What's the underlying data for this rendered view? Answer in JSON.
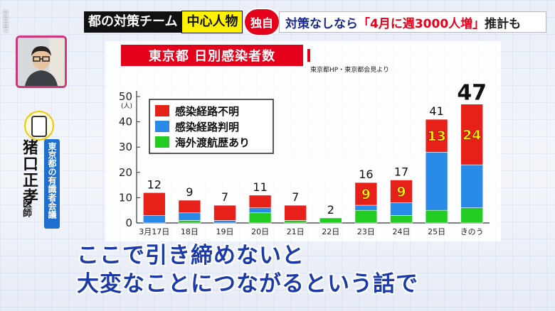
{
  "logo": "GOOD!",
  "caption": {
    "team": "都の対策チーム",
    "role": "中心人物",
    "exclusive": "独自",
    "headline_pre": "対策なしなら",
    "headline_hl": "「4月に週3000人増」",
    "headline_post": "推計も"
  },
  "person": {
    "name": "猪口正孝",
    "title": "医師",
    "affiliation": "東京都の有識者会議メンバー"
  },
  "subtitle": {
    "line1": "ここで引き締めないと",
    "line2": "大変なことにつながるという話で"
  },
  "source": "東京都HP・東京都会見より",
  "colors": {
    "unknown": "#e8201a",
    "known": "#2a8ae8",
    "overseas": "#22cc22",
    "accent": "#e4001a",
    "subtitle": "#1b3aa8"
  },
  "chart_data": {
    "type": "bar",
    "stacked": true,
    "title": "東京都 日別感染者数",
    "ylabel": "(人)",
    "ylim": [
      0,
      50
    ],
    "yticks": [
      0,
      10,
      20,
      30,
      40,
      50
    ],
    "categories": [
      "3月17日",
      "18日",
      "19日",
      "20日",
      "21日",
      "22日",
      "23日",
      "24日",
      "25日",
      "きのう"
    ],
    "totals": [
      12,
      9,
      7,
      11,
      7,
      2,
      16,
      17,
      41,
      47
    ],
    "series": [
      {
        "name": "海外渡航歴あり",
        "key": "overseas",
        "values": [
          0,
          1,
          0,
          4,
          1,
          2,
          5,
          3,
          5,
          6
        ]
      },
      {
        "name": "感染経路判明",
        "key": "known",
        "values": [
          3,
          3,
          1,
          2,
          0,
          0,
          2,
          5,
          23,
          17
        ]
      },
      {
        "name": "感染経路不明",
        "key": "unknown",
        "values": [
          9,
          5,
          6,
          5,
          6,
          0,
          9,
          9,
          13,
          24
        ]
      }
    ],
    "highlighted_labels": [
      {
        "category": "23日",
        "series": "感染経路不明",
        "value": 9
      },
      {
        "category": "24日",
        "series": "感染経路不明",
        "value": 9
      },
      {
        "category": "25日",
        "series": "感染経路不明",
        "value": 13
      },
      {
        "category": "きのう",
        "series": "感染経路不明",
        "value": 24
      }
    ],
    "legend": [
      "感染経路不明",
      "感染経路判明",
      "海外渡航歴あり"
    ],
    "legend_position": "top-left"
  }
}
